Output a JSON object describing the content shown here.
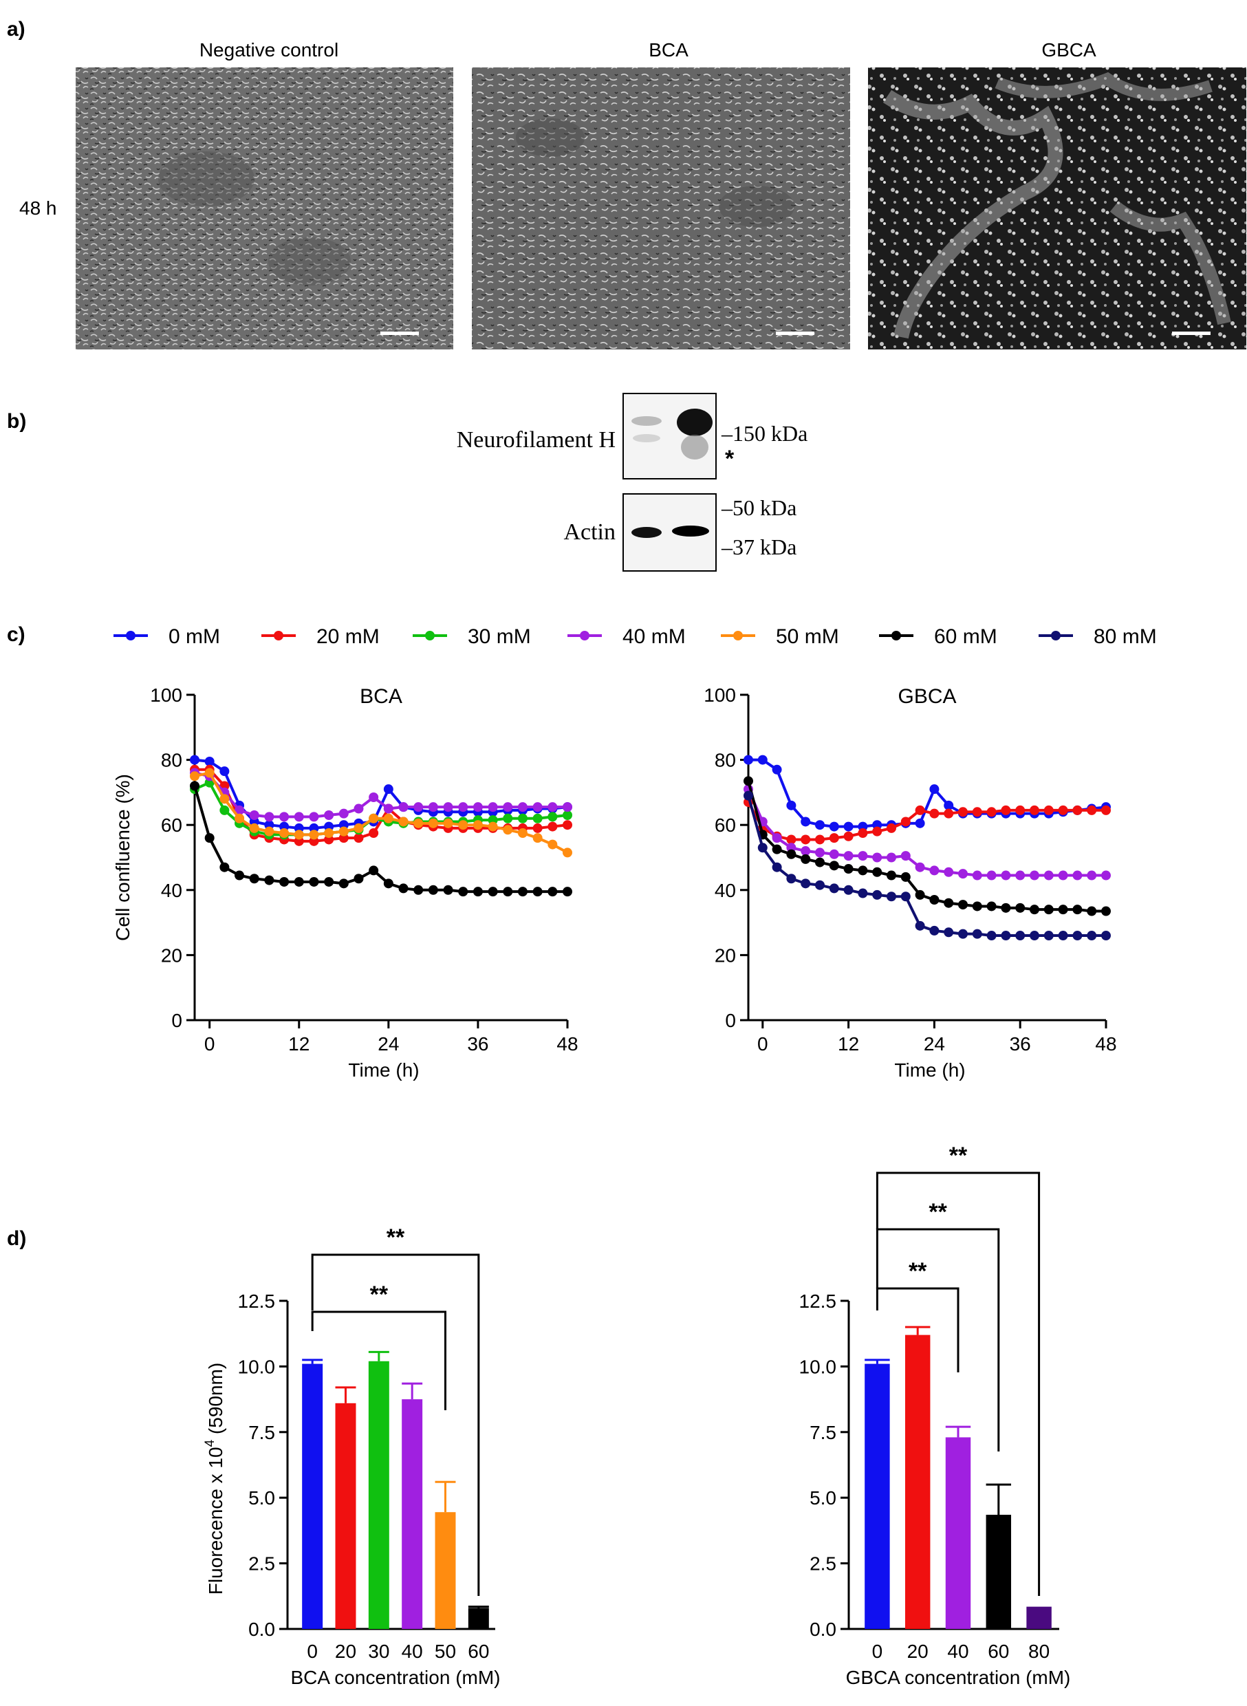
{
  "colors": {
    "0": "#1010f0",
    "20": "#f01010",
    "30": "#10c010",
    "40": "#a020e0",
    "50": "#ff8c10",
    "60": "#000000",
    "80": "#101070",
    "80bar": "#4a0a80"
  },
  "panel_a": {
    "label": "a)",
    "row_label": "48 h",
    "titles": [
      "Negative control",
      "BCA",
      "GBCA"
    ]
  },
  "panel_b": {
    "label": "b)",
    "blot1_label": "Neurofilament H",
    "blot1_marker": "–150 kDa",
    "star": "*",
    "blot2_label": "Actin",
    "blot2_marker1": "–50 kDa",
    "blot2_marker2": "–37 kDa"
  },
  "panel_c": {
    "label": "c)",
    "legend": [
      {
        "key": "0",
        "label": "0 mM"
      },
      {
        "key": "20",
        "label": "20 mM"
      },
      {
        "key": "30",
        "label": "30 mM"
      },
      {
        "key": "40",
        "label": "40 mM"
      },
      {
        "key": "50",
        "label": "50 mM"
      },
      {
        "key": "60",
        "label": "60 mM"
      },
      {
        "key": "80",
        "label": "80 mM"
      }
    ]
  },
  "panel_d": {
    "label": "d)"
  },
  "chart_data": [
    {
      "type": "line",
      "title": "BCA",
      "xlabel": "Time (h)",
      "ylabel": "Cell confluence  (%)",
      "xlim": [
        -2,
        48
      ],
      "ylim": [
        0,
        100
      ],
      "xticks": [
        0,
        12,
        24,
        36,
        48
      ],
      "yticks": [
        0,
        20,
        40,
        60,
        80,
        100
      ],
      "x": [
        -2,
        0,
        2,
        4,
        6,
        8,
        10,
        12,
        14,
        16,
        18,
        20,
        22,
        24,
        26,
        28,
        30,
        32,
        34,
        36,
        38,
        40,
        42,
        44,
        46,
        48
      ],
      "series": [
        {
          "name": "0 mM",
          "key": "0",
          "values": [
            80,
            79.5,
            76.5,
            66,
            61,
            60,
            59.5,
            59,
            59,
            59.5,
            60,
            60.5,
            61,
            71,
            65.5,
            64.5,
            64,
            64,
            64,
            64,
            64,
            64.5,
            64.5,
            65,
            65,
            65.5
          ]
        },
        {
          "name": "20 mM",
          "key": "20",
          "values": [
            77,
            77,
            72,
            62,
            57,
            56,
            55.5,
            55,
            55,
            55.5,
            56,
            56,
            57.5,
            65,
            61,
            60,
            59.5,
            59,
            59,
            59,
            59,
            59,
            59,
            59,
            59.5,
            60
          ]
        },
        {
          "name": "30 mM",
          "key": "30",
          "values": [
            71,
            73,
            64.5,
            60.5,
            58,
            57,
            57,
            57,
            57,
            57.5,
            58,
            58.5,
            62,
            61,
            60.5,
            61,
            61,
            61,
            61,
            61.5,
            61.5,
            62,
            62,
            62,
            62.5,
            63
          ]
        },
        {
          "name": "40 mM",
          "key": "40",
          "values": [
            76,
            75,
            70,
            64.5,
            63,
            62.5,
            62.5,
            62.5,
            62.5,
            63,
            63.5,
            65,
            68.5,
            65,
            65.5,
            65.5,
            65.5,
            65.5,
            65.5,
            65.5,
            65.5,
            65.5,
            65.5,
            65.5,
            65.5,
            65.5
          ]
        },
        {
          "name": "50 mM",
          "key": "50",
          "values": [
            75,
            76,
            68,
            62,
            59,
            58,
            57.5,
            57,
            57,
            57.5,
            58,
            59,
            62,
            62,
            61,
            60.5,
            60.5,
            60.5,
            60,
            60,
            59.5,
            58.5,
            57.5,
            56,
            54,
            51.5
          ]
        },
        {
          "name": "60 mM",
          "key": "60",
          "values": [
            72,
            56,
            47,
            44.5,
            43.5,
            43,
            42.5,
            42.5,
            42.5,
            42.5,
            42,
            43.5,
            46,
            42,
            40.5,
            40,
            40,
            40,
            39.5,
            39.5,
            39.5,
            39.5,
            39.5,
            39.5,
            39.5,
            39.5
          ]
        }
      ]
    },
    {
      "type": "line",
      "title": "GBCA",
      "xlabel": "Time (h)",
      "ylabel": "",
      "xlim": [
        -2,
        48
      ],
      "ylim": [
        0,
        100
      ],
      "xticks": [
        0,
        12,
        24,
        36,
        48
      ],
      "yticks": [
        0,
        20,
        40,
        60,
        80,
        100
      ],
      "x": [
        -2,
        0,
        2,
        4,
        6,
        8,
        10,
        12,
        14,
        16,
        18,
        20,
        22,
        24,
        26,
        28,
        30,
        32,
        34,
        36,
        38,
        40,
        42,
        44,
        46,
        48
      ],
      "series": [
        {
          "name": "0 mM",
          "key": "0",
          "values": [
            80,
            80,
            77,
            66,
            61,
            60,
            59.5,
            59.5,
            59.5,
            60,
            60,
            60.5,
            60.5,
            71,
            66,
            63.5,
            63.5,
            63.5,
            63.5,
            63.5,
            63.5,
            63.5,
            64,
            64.5,
            65,
            65.5
          ]
        },
        {
          "name": "20 mM",
          "key": "20",
          "values": [
            67,
            59,
            56.5,
            55.5,
            55.5,
            55.5,
            56,
            56.5,
            57.5,
            58,
            59,
            61,
            64.5,
            63.5,
            63.5,
            64,
            64,
            64,
            64.5,
            64.5,
            64.5,
            64.5,
            64.5,
            64.5,
            64.5,
            64.5
          ]
        },
        {
          "name": "40 mM",
          "key": "40",
          "values": [
            71,
            61,
            56,
            53,
            52,
            51.5,
            51,
            50.5,
            50.5,
            50,
            50,
            50.5,
            47,
            46,
            45.5,
            45,
            44.5,
            44.5,
            44.5,
            44.5,
            44.5,
            44.5,
            44.5,
            44.5,
            44.5,
            44.5
          ]
        },
        {
          "name": "60 mM",
          "key": "60",
          "values": [
            73.5,
            57,
            52.5,
            51,
            49.5,
            48.5,
            47.5,
            46.5,
            46,
            45.5,
            44.5,
            44,
            38.5,
            37,
            36,
            35.5,
            35,
            35,
            34.5,
            34.5,
            34,
            34,
            34,
            34,
            33.5,
            33.5
          ]
        },
        {
          "name": "80 mM",
          "key": "80",
          "values": [
            69,
            53,
            47,
            43.5,
            42,
            41.5,
            40.5,
            40,
            39,
            38.5,
            38,
            38,
            29,
            27.5,
            27,
            26.5,
            26.5,
            26,
            26,
            26,
            26,
            26,
            26,
            26,
            26,
            26
          ]
        }
      ]
    },
    {
      "type": "bar",
      "categories": [
        "0",
        "20",
        "30",
        "40",
        "50",
        "60"
      ],
      "keys": [
        "0",
        "20",
        "30",
        "40",
        "50",
        "60"
      ],
      "values": [
        10.1,
        8.6,
        10.2,
        8.75,
        4.45,
        0.8
      ],
      "errors": [
        0.15,
        0.6,
        0.35,
        0.6,
        1.15,
        0.05
      ],
      "xlabel": "BCA concentration (mM)",
      "ylabel": "Fluorecence x 10",
      "ylabel_sup": "4",
      "ylabel_tail": " (590nm)",
      "ylim": [
        0,
        12.5
      ],
      "yticks": [
        "0.0",
        "2.5",
        "5.0",
        "7.5",
        "10.0",
        "12.5"
      ],
      "significance": [
        {
          "from": "0",
          "to": "50",
          "label": "**"
        },
        {
          "from": "0",
          "to": "60",
          "label": "**"
        }
      ]
    },
    {
      "type": "bar",
      "categories": [
        "0",
        "20",
        "40",
        "60",
        "80"
      ],
      "keys": [
        "0",
        "20",
        "40",
        "60",
        "80bar"
      ],
      "values": [
        10.1,
        11.2,
        7.3,
        4.35,
        0.78
      ],
      "errors": [
        0.15,
        0.3,
        0.4,
        1.15,
        0.03
      ],
      "xlabel": "GBCA concentration (mM)",
      "ylabel": "",
      "ylim": [
        0,
        12.5
      ],
      "yticks": [
        "0.0",
        "2.5",
        "5.0",
        "7.5",
        "10.0",
        "12.5"
      ],
      "significance": [
        {
          "from": "0",
          "to": "40",
          "label": "**"
        },
        {
          "from": "0",
          "to": "60",
          "label": "**"
        },
        {
          "from": "0",
          "to": "80",
          "label": "**"
        }
      ]
    }
  ]
}
